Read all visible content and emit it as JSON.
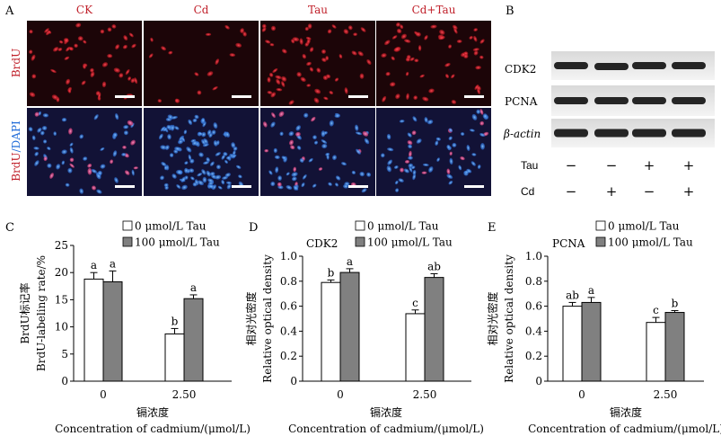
{
  "panel_a": {
    "letter": "A",
    "columns": [
      "CK",
      "Cd",
      "Tau",
      "Cd+Tau"
    ],
    "row_label_brdu": "BrdU",
    "row_label_brdu_merge": "BrdU",
    "row_label_dapi": "/DAPI"
  },
  "panel_b": {
    "letter": "B",
    "bands": [
      "CDK2",
      "PCNA"
    ],
    "actin_label": "β-actin",
    "treatments": [
      {
        "name": "Tau",
        "marks": [
          "−",
          "−",
          "+",
          "+"
        ]
      },
      {
        "name": "Cd",
        "marks": [
          "−",
          "+",
          "−",
          "+"
        ]
      }
    ]
  },
  "colors": {
    "bar_0": "#ffffff",
    "bar_100": "#808080",
    "brdu_red": "#d0202a",
    "dapi_blue": "#1e6ad8",
    "micrograph_bg": "#1a0508"
  },
  "chart_data": [
    {
      "type": "bar",
      "letter": "C",
      "title": "",
      "ylabel": "BrdU标记率",
      "ylabel2": "BrdU-labeling rate/%",
      "xlabel": "镉浓度",
      "xlabel2": "Concentration of cadmium/(μmol/L)",
      "ylim": [
        0,
        25
      ],
      "yticks": [
        "0",
        "5",
        "10",
        "15",
        "20",
        "25"
      ],
      "categories": [
        "0",
        "2.50"
      ],
      "series": [
        {
          "name": "0 μmol/L Tau",
          "values": [
            18.8,
            8.7
          ],
          "errors": [
            1.2,
            1.0
          ],
          "letters": [
            "a",
            "b"
          ]
        },
        {
          "name": "100 μmol/L Tau",
          "values": [
            18.3,
            15.2
          ],
          "errors": [
            2.0,
            0.7
          ],
          "letters": [
            "a",
            "a"
          ]
        }
      ]
    },
    {
      "type": "bar",
      "letter": "D",
      "title": "CDK2",
      "ylabel": "相对光密度",
      "ylabel2": "Relative optical density",
      "xlabel": "镉浓度",
      "xlabel2": "Concentration of cadmium/(μmol/L)",
      "ylim": [
        0,
        1.0
      ],
      "yticks": [
        "0",
        "0.2",
        "0.4",
        "0.6",
        "0.8",
        "1.0"
      ],
      "categories": [
        "0",
        "2.50"
      ],
      "series": [
        {
          "name": "0 μmol/L Tau",
          "values": [
            0.79,
            0.54
          ],
          "errors": [
            0.02,
            0.03
          ],
          "letters": [
            "b",
            "c"
          ]
        },
        {
          "name": "100 μmol/L Tau",
          "values": [
            0.87,
            0.83
          ],
          "errors": [
            0.03,
            0.03
          ],
          "letters": [
            "a",
            "ab"
          ]
        }
      ]
    },
    {
      "type": "bar",
      "letter": "E",
      "title": "PCNA",
      "ylabel": "相对光密度",
      "ylabel2": "Relative optical density",
      "xlabel": "镉浓度",
      "xlabel2": "Concentration of cadmium/(μmol/L)",
      "ylim": [
        0,
        1.0
      ],
      "yticks": [
        "0",
        "0.2",
        "0.4",
        "0.6",
        "0.8",
        "1.0"
      ],
      "categories": [
        "0",
        "2.50"
      ],
      "series": [
        {
          "name": "0 μmol/L Tau",
          "values": [
            0.6,
            0.47
          ],
          "errors": [
            0.03,
            0.04
          ],
          "letters": [
            "ab",
            "c"
          ]
        },
        {
          "name": "100 μmol/L Tau",
          "values": [
            0.63,
            0.55
          ],
          "errors": [
            0.04,
            0.015
          ],
          "letters": [
            "a",
            "b"
          ]
        }
      ]
    }
  ]
}
